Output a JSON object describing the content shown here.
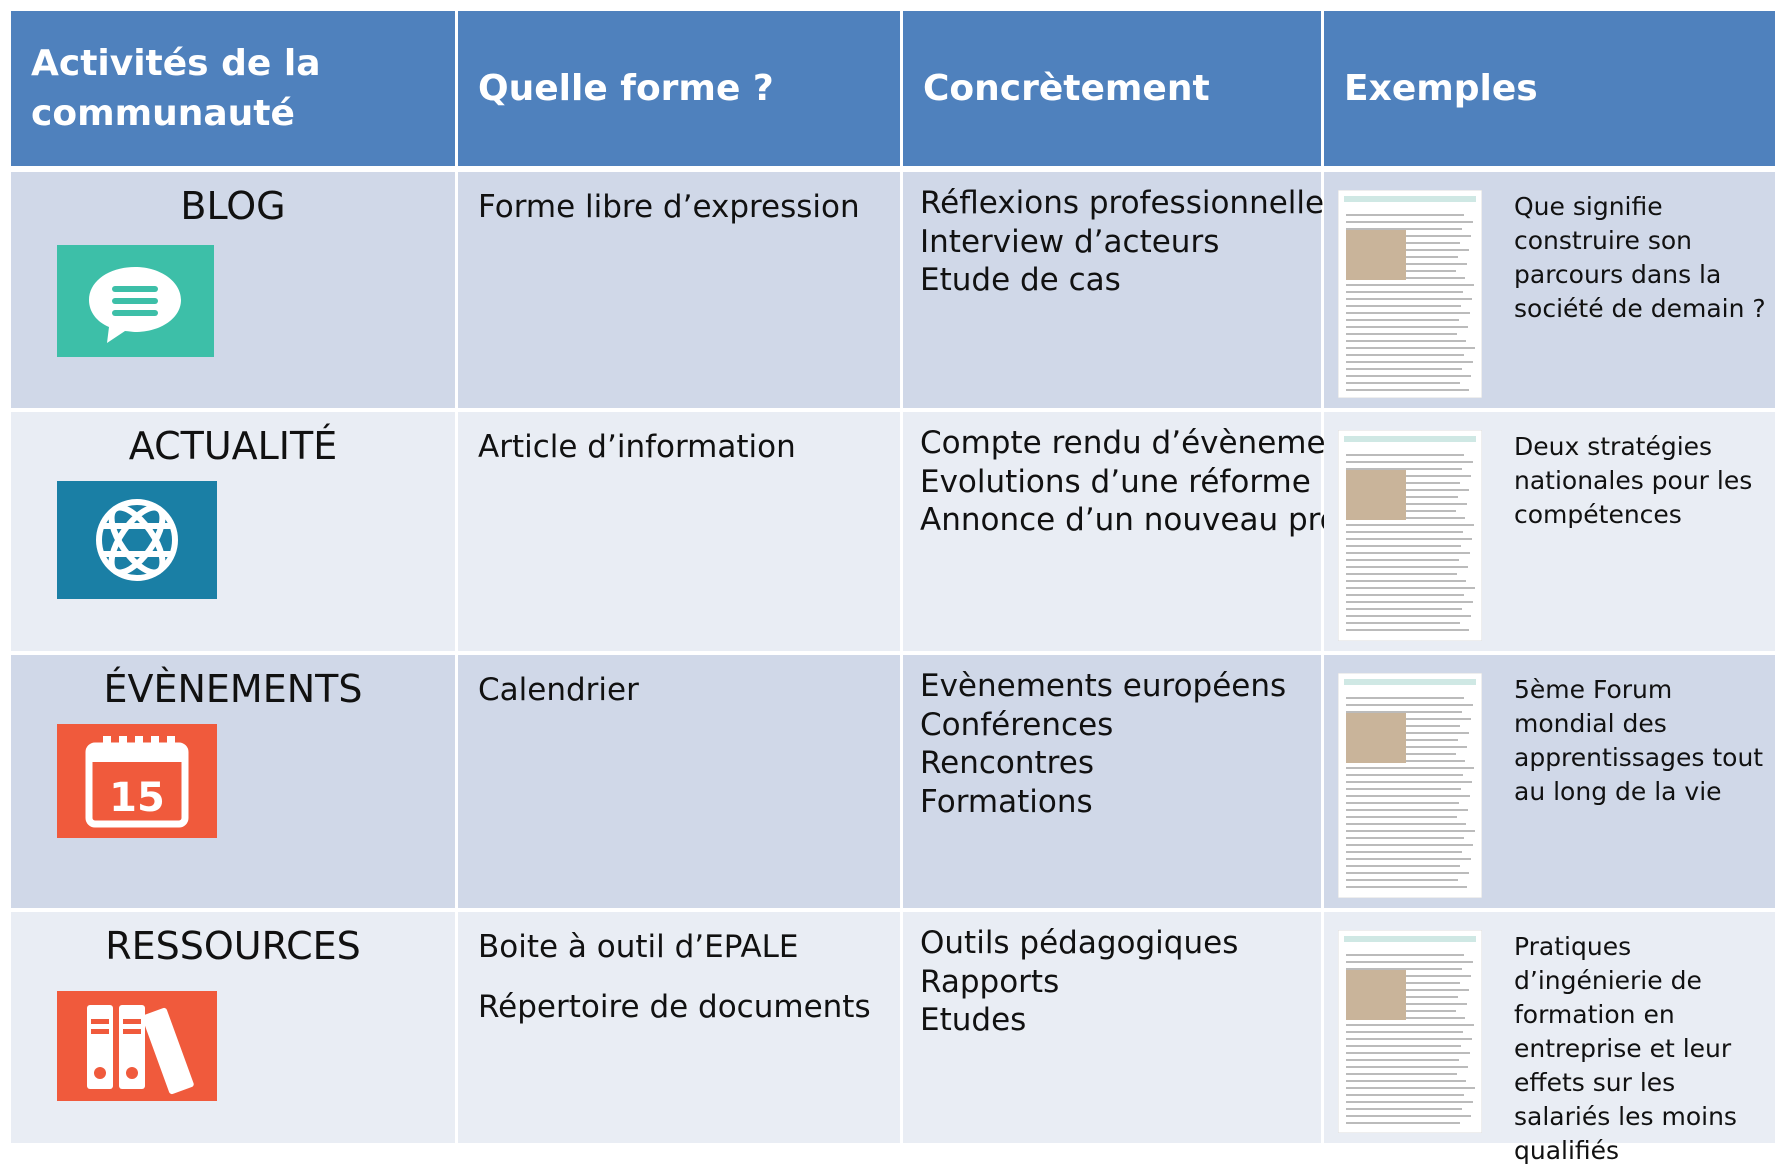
{
  "table": {
    "header": [
      "Activités de la communauté",
      "Quelle forme ?",
      "Concrètement",
      "Exemples"
    ],
    "rows": [
      {
        "activity": "BLOG",
        "form": [
          "Forme libre d’expression"
        ],
        "concrete": [
          "Réflexions professionnelles",
          "Interview d’acteurs",
          "Etude de cas"
        ],
        "example": "Que signifie construire son parcours dans la société de demain ?"
      },
      {
        "activity": "ACTUALITÉ",
        "form": [
          "Article d’information"
        ],
        "concrete": [
          "Compte rendu d’évènements",
          "Evolutions d’une réforme",
          "Annonce d’un nouveau projet"
        ],
        "example": "Deux stratégies nationales pour les compétences"
      },
      {
        "activity": "ÉVÈNEMENTS",
        "icon_text": "15",
        "form": [
          "Calendrier"
        ],
        "concrete": [
          "Evènements européens",
          "Conférences",
          "Rencontres",
          "Formations"
        ],
        "example": "5ème Forum mondial des apprentissages tout au long de la vie"
      },
      {
        "activity": "RESSOURCES",
        "form": [
          "Boite à outil d’EPALE",
          "Répertoire de documents"
        ],
        "concrete": [
          "Outils pédagogiques",
          "Rapports",
          "Etudes"
        ],
        "example": "Pratiques d’ingénierie de formation en entreprise et leur effets sur les salariés les moins qualifiés"
      }
    ]
  }
}
